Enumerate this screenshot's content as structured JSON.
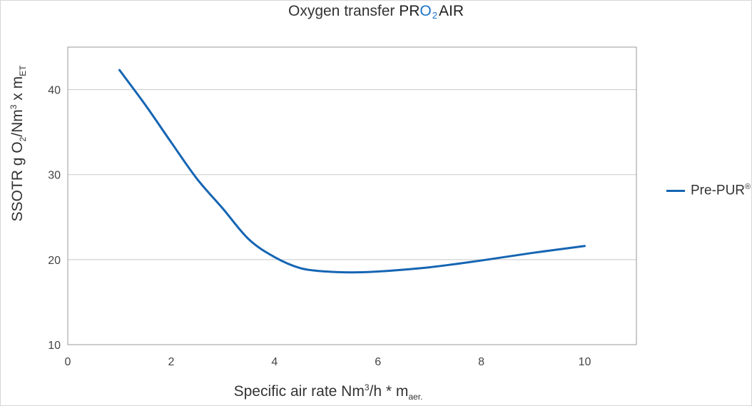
{
  "title": {
    "prefix": "Oxygen transfer",
    "brand_pr": "PR",
    "brand_o": "O",
    "brand_sub": "2",
    "brand_air": "AIR"
  },
  "axes": {
    "ylabel_main": "SSOTR g O",
    "ylabel_sub1": "2",
    "ylabel_mid": "/Nm",
    "ylabel_sup": "3",
    "ylabel_tail": " x m",
    "ylabel_sub2": "ET",
    "xlabel_main": "Specific air rate Nm",
    "xlabel_sup": "3",
    "xlabel_mid": "/h * m",
    "xlabel_sub": "aer."
  },
  "legend": {
    "label": "Pre-PUR",
    "mark": "®"
  },
  "colors": {
    "series": "#1565b3",
    "grid": "#c8c8c8",
    "frame": "#9a9a9a"
  },
  "chart_data": {
    "type": "line",
    "title": "Oxygen transfer PRO2AIR",
    "xlabel": "Specific air rate Nm3/h * m aer.",
    "ylabel": "SSOTR g O2/Nm3 x m ET",
    "xlim": [
      0,
      11
    ],
    "ylim": [
      10,
      45
    ],
    "xticks": [
      0,
      2,
      4,
      6,
      8,
      10
    ],
    "yticks": [
      10,
      20,
      30,
      40
    ],
    "grid": "horizontal",
    "legend_position": "right",
    "series": [
      {
        "name": "Pre-PUR®",
        "x": [
          1.0,
          1.5,
          2.0,
          2.5,
          3.0,
          3.5,
          4.0,
          4.5,
          5.0,
          5.5,
          6.0,
          7.0,
          8.0,
          9.0,
          10.0
        ],
        "y": [
          42.3,
          38.2,
          33.8,
          29.5,
          26.0,
          22.4,
          20.3,
          19.0,
          18.6,
          18.5,
          18.6,
          19.1,
          19.9,
          20.8,
          21.6
        ]
      }
    ]
  }
}
